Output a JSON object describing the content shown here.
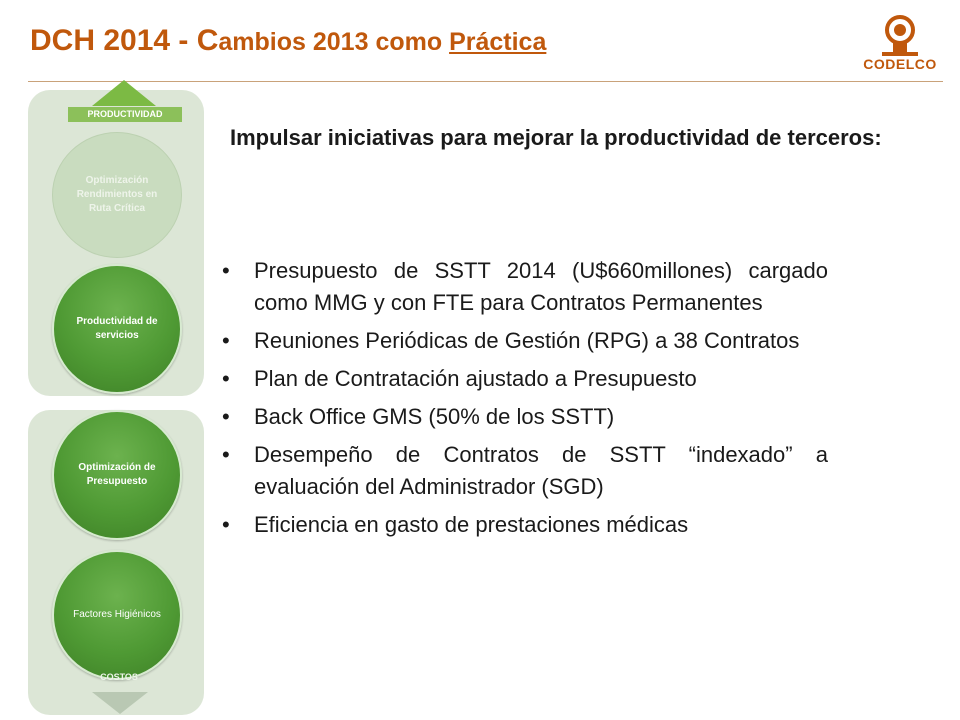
{
  "header": {
    "title_main": "DCH 2014 - C",
    "title_rest": "ambios 2013 como ",
    "title_link": "Práctica"
  },
  "logo": {
    "text": "CODELCO"
  },
  "colors": {
    "title": "#c0580c",
    "circle_green": "#4f9a34",
    "panel_bg": "#dce6d6"
  },
  "diagram": {
    "top_label": "PRODUCTIVIDAD",
    "bottom_label": "COSTOS",
    "circles": [
      {
        "text": "Optimización Rendimientos en Ruta Crítica"
      },
      {
        "text": "Productividad de servicios"
      },
      {
        "text": "Optimización de Presupuesto"
      },
      {
        "text": "Factores Higiénicos"
      }
    ]
  },
  "content": {
    "intro": "Impulsar iniciativas para mejorar la productividad de terceros:",
    "bullet_char": "•",
    "bullets": [
      "Presupuesto de SSTT 2014 (U$660millones) cargado como MMG y con FTE para Contratos Permanentes",
      "Reuniones Periódicas de Gestión (RPG) a 38 Contratos",
      "Plan de Contratación ajustado a Presupuesto",
      "Back Office GMS (50% de los SSTT)",
      "Desempeño de Contratos de SSTT “indexado” a evaluación del Administrador (SGD)",
      "Eficiencia en gasto de prestaciones médicas"
    ]
  }
}
